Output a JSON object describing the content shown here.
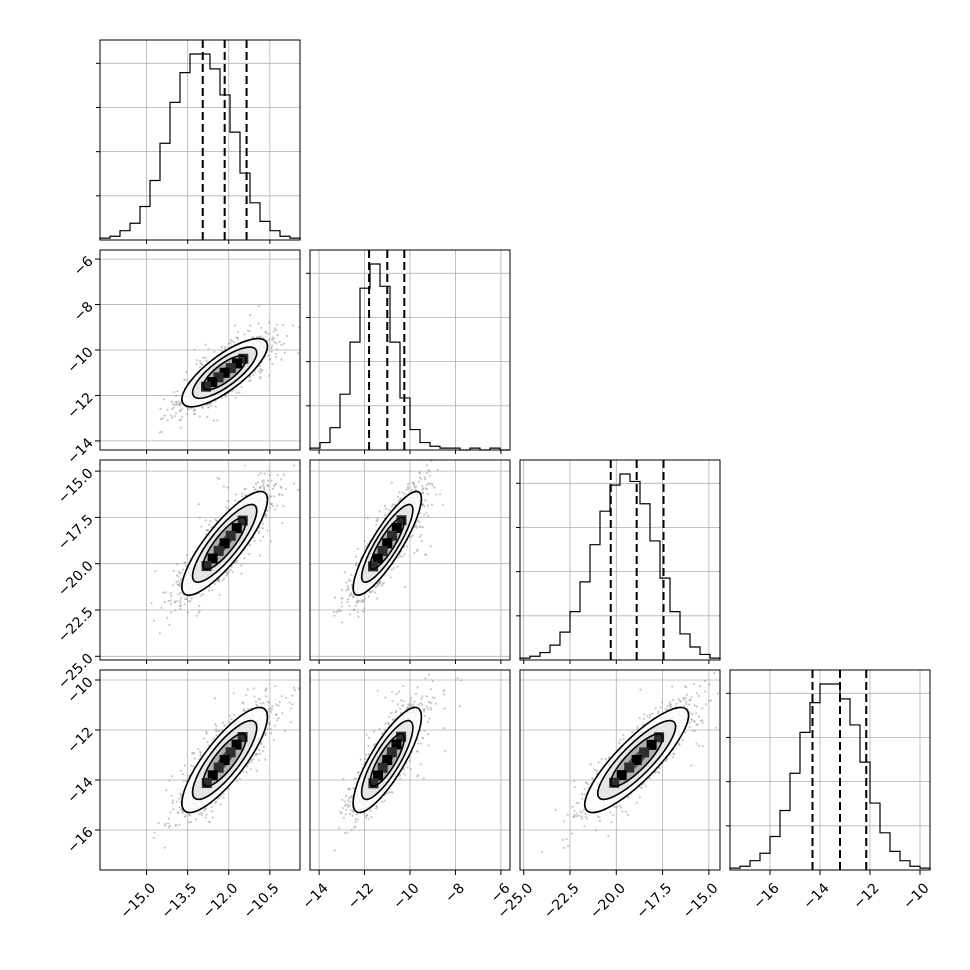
{
  "chart_data": {
    "type": "corner",
    "title": "",
    "variables": [
      {
        "center": -12.15,
        "sigma": 0.78,
        "quantiles": [
          -12.95,
          -12.15,
          -11.35
        ],
        "range": [
          -16.7,
          -9.4
        ],
        "hist_counts": [
          1,
          2,
          5,
          9,
          18,
          32,
          52,
          74,
          90,
          100,
          100,
          92,
          78,
          58,
          36,
          20,
          10,
          5,
          2,
          1
        ],
        "ticks": [
          -15.0,
          -13.5,
          -12.0,
          -10.5
        ],
        "tick_labels": [
          "−15.0",
          "−13.5",
          "−12.0",
          "−10.5"
        ]
      },
      {
        "center": -11.0,
        "sigma": 0.75,
        "quantiles": [
          -11.8,
          -11.0,
          -10.25
        ],
        "range": [
          -14.4,
          -5.6
        ],
        "hist_counts": [
          1,
          4,
          12,
          30,
          58,
          87,
          100,
          88,
          58,
          28,
          11,
          4,
          2,
          1,
          1,
          0,
          1,
          0,
          1,
          0
        ],
        "ticks": [
          -14,
          -12,
          -10,
          -8,
          -6
        ],
        "tick_labels": [
          "−14",
          "−12",
          "−10",
          "−8",
          "−6"
        ]
      },
      {
        "center": -18.9,
        "sigma": 1.4,
        "quantiles": [
          -20.3,
          -18.9,
          -17.45
        ],
        "range": [
          -25.2,
          -14.4
        ],
        "hist_counts": [
          1,
          2,
          4,
          8,
          15,
          26,
          42,
          62,
          80,
          94,
          100,
          96,
          84,
          64,
          44,
          26,
          14,
          7,
          3,
          1
        ],
        "ticks": [
          -25.0,
          -22.5,
          -20.0,
          -17.5,
          -15.0
        ],
        "tick_labels": [
          "−25.0",
          "−22.5",
          "−20.0",
          "−17.5",
          "−15.0"
        ]
      },
      {
        "center": -13.2,
        "sigma": 1.05,
        "quantiles": [
          -14.3,
          -13.2,
          -12.15
        ],
        "range": [
          -17.6,
          -9.6
        ],
        "hist_counts": [
          1,
          2,
          5,
          9,
          18,
          32,
          52,
          74,
          90,
          100,
          100,
          92,
          78,
          58,
          36,
          20,
          10,
          5,
          2,
          1
        ],
        "ticks": [
          -16,
          -14,
          -12,
          -10
        ],
        "tick_labels": [
          "−16",
          "−14",
          "−12",
          "−10"
        ]
      }
    ],
    "correlations": [
      [
        1.0,
        0.78,
        0.84,
        0.82
      ],
      [
        0.78,
        1.0,
        0.86,
        0.82
      ],
      [
        0.84,
        0.86,
        1.0,
        0.85
      ],
      [
        0.82,
        0.82,
        0.85,
        1.0
      ]
    ],
    "contour_levels_sigma": [
      0.5,
      1.0,
      1.5,
      2.0
    ],
    "grid": true,
    "xlabel": "",
    "ylabel": ""
  }
}
